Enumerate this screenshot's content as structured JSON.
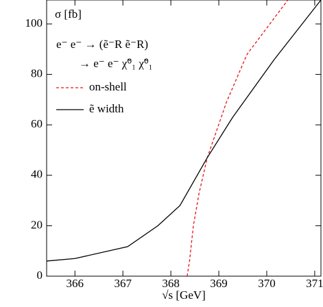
{
  "chart_data": {
    "type": "line",
    "y_label": "σ [fb]",
    "x_label": "√s [GeV]",
    "annotations": [
      "e⁻ e⁻ → (ẽ⁻R ẽ⁻R)",
      "→ e⁻ e⁻ χ̃⁰₁ χ̃⁰₁"
    ],
    "xlim": [
      365.41,
      371.13
    ],
    "xticks": [
      366,
      367,
      368,
      369,
      370,
      371
    ],
    "ylim": [
      0,
      109.5
    ],
    "yticks": [
      0,
      20,
      40,
      60,
      80,
      100
    ],
    "series": [
      {
        "name": "on-shell",
        "color": "#e8101a",
        "dash": true,
        "x": [
          368.34,
          368.39,
          368.47,
          368.59,
          368.76,
          369.16,
          369.59,
          370.44
        ],
        "values": [
          0,
          6,
          20,
          33,
          47,
          69,
          88,
          109.5
        ]
      },
      {
        "name": "ẽ width",
        "color": "#000000",
        "dash": false,
        "x": [
          365.41,
          366,
          367.1,
          367.73,
          368.19,
          368.76,
          369.29,
          370.16,
          371.13
        ],
        "values": [
          6,
          7,
          11.7,
          20,
          28,
          47,
          63,
          86,
          109.5
        ]
      }
    ]
  }
}
